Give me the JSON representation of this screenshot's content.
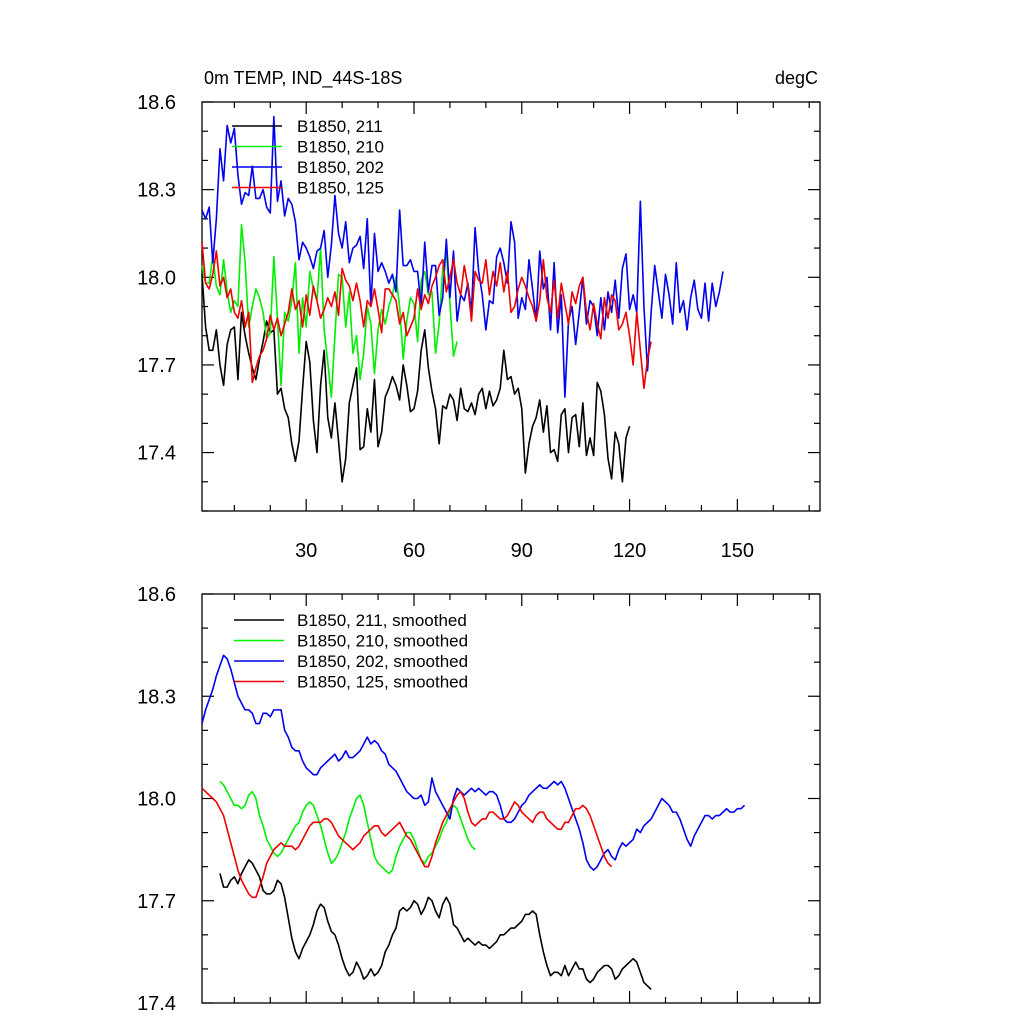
{
  "chart_data": [
    {
      "type": "line",
      "title": "0m TEMP, IND_44S-18S",
      "units": "degC",
      "ylim": [
        17.2,
        18.6
      ],
      "yticks": [
        "18.6",
        "18.3",
        "18.0",
        "17.7",
        "17.4"
      ],
      "xlim": [
        1,
        173
      ],
      "xticks": [
        "30",
        "60",
        "90",
        "120",
        "150"
      ],
      "legend_placement": "top-left",
      "series": [
        {
          "name": "B1850, 211",
          "color": "#000000",
          "x0": 1,
          "values": [
            18.01,
            17.83,
            17.75,
            17.75,
            17.82,
            17.7,
            17.63,
            17.77,
            17.82,
            17.83,
            17.65,
            17.88,
            17.8,
            17.74,
            17.69,
            17.65,
            17.72,
            17.78,
            17.85,
            17.81,
            17.82,
            17.6,
            17.62,
            17.55,
            17.52,
            17.43,
            17.37,
            17.44,
            17.62,
            17.78,
            17.71,
            17.51,
            17.4,
            17.63,
            17.75,
            17.52,
            17.45,
            17.57,
            17.44,
            17.3,
            17.38,
            17.57,
            17.63,
            17.69,
            17.41,
            17.42,
            17.55,
            17.47,
            17.65,
            17.42,
            17.47,
            17.59,
            17.62,
            17.66,
            17.63,
            17.58,
            17.7,
            17.63,
            17.54,
            17.55,
            17.61,
            17.75,
            17.82,
            17.69,
            17.61,
            17.55,
            17.43,
            17.56,
            17.55,
            17.6,
            17.58,
            17.51,
            17.62,
            17.55,
            17.54,
            17.57,
            17.53,
            17.6,
            17.62,
            17.55,
            17.61,
            17.56,
            17.58,
            17.62,
            17.75,
            17.65,
            17.66,
            17.6,
            17.62,
            17.55,
            17.33,
            17.43,
            17.49,
            17.52,
            17.58,
            17.47,
            17.56,
            17.4,
            17.41,
            17.37,
            17.53,
            17.55,
            17.4,
            17.52,
            17.53,
            17.42,
            17.57,
            17.39,
            17.45,
            17.39,
            17.64,
            17.61,
            17.53,
            17.38,
            17.31,
            17.47,
            17.43,
            17.3,
            17.45,
            17.49
          ]
        },
        {
          "name": "B1850, 210",
          "color": "#00ee00",
          "x0": 1,
          "values": [
            18.04,
            17.98,
            17.98,
            18.07,
            17.97,
            17.94,
            18.06,
            17.95,
            17.88,
            17.92,
            17.9,
            18.18,
            18.05,
            17.83,
            17.9,
            17.96,
            17.93,
            17.88,
            17.79,
            17.81,
            18.07,
            17.86,
            17.63,
            17.88,
            17.85,
            17.92,
            18.05,
            17.74,
            17.93,
            17.83,
            18.02,
            17.96,
            17.92,
            18.1,
            17.82,
            17.71,
            17.59,
            17.8,
            18.01,
            18.0,
            17.83,
            17.95,
            17.74,
            17.8,
            17.65,
            17.74,
            17.9,
            17.84,
            17.67,
            17.82,
            17.89,
            17.84,
            17.9,
            17.94,
            18.0,
            17.9,
            17.72,
            17.85,
            17.93,
            17.91,
            17.78,
            17.99,
            18.02,
            17.94,
            17.95,
            17.74,
            17.84,
            18.03,
            18.09,
            17.91,
            17.73,
            17.78
          ]
        },
        {
          "name": "B1850, 202",
          "color": "#0000ee",
          "x0": 1,
          "values": [
            18.23,
            18.2,
            18.24,
            18.05,
            18.2,
            18.44,
            18.33,
            18.52,
            18.46,
            18.51,
            18.35,
            18.25,
            18.29,
            18.28,
            18.38,
            18.27,
            18.27,
            18.3,
            18.24,
            18.22,
            18.55,
            18.26,
            18.33,
            18.21,
            18.27,
            18.25,
            18.19,
            18.06,
            18.12,
            18.1,
            18.07,
            18.03,
            18.09,
            18.1,
            18.16,
            18.0,
            18.11,
            18.28,
            18.15,
            18.1,
            18.19,
            18.05,
            18.1,
            18.11,
            18.14,
            18.03,
            18.2,
            17.9,
            18.15,
            18.02,
            18.05,
            18.02,
            17.98,
            18.01,
            17.95,
            18.23,
            18.04,
            18.04,
            18.06,
            18.02,
            18.02,
            17.9,
            18.12,
            17.95,
            18.04,
            18.04,
            17.87,
            17.93,
            18.13,
            17.93,
            18.09,
            17.85,
            17.94,
            17.92,
            17.98,
            17.88,
            18.17,
            18.02,
            17.94,
            17.82,
            17.92,
            17.91,
            18.07,
            18.1,
            18.05,
            17.98,
            18.19,
            18.12,
            17.86,
            17.93,
            17.89,
            18.06,
            17.96,
            17.85,
            18.09,
            17.96,
            18.0,
            17.82,
            18.05,
            17.81,
            17.94,
            17.59,
            17.85,
            17.9,
            17.77,
            17.88,
            18.0,
            17.84,
            17.92,
            17.9,
            17.8,
            17.93,
            17.82,
            17.95,
            17.88,
            17.99,
            17.86,
            18.03,
            18.08,
            17.89,
            17.94,
            17.88,
            18.26,
            17.9,
            17.68,
            17.88,
            18.04,
            17.95,
            17.86,
            18.01,
            17.94,
            17.84,
            18.05,
            17.88,
            17.92,
            17.82,
            17.93,
            17.99,
            17.89,
            17.86,
            17.98,
            17.85,
            17.98,
            17.9,
            17.95,
            18.02
          ]
        },
        {
          "name": "B1850, 125",
          "color": "#ee0000",
          "x0": 1,
          "values": [
            18.12,
            17.98,
            17.96,
            18.01,
            18.09,
            17.97,
            18.0,
            17.93,
            17.96,
            17.88,
            17.86,
            17.92,
            17.83,
            17.88,
            17.64,
            17.69,
            17.73,
            17.75,
            17.79,
            17.87,
            17.82,
            17.86,
            17.8,
            17.84,
            17.88,
            17.96,
            17.89,
            17.92,
            17.83,
            17.94,
            17.87,
            17.97,
            17.92,
            17.86,
            17.89,
            17.93,
            17.9,
            17.95,
            17.87,
            18.03,
            17.99,
            17.97,
            17.92,
            17.98,
            17.92,
            17.83,
            17.92,
            17.9,
            17.96,
            17.89,
            17.81,
            17.96,
            17.96,
            17.94,
            17.92,
            17.84,
            17.88,
            17.8,
            17.83,
            17.86,
            17.96,
            17.89,
            17.94,
            17.91,
            17.97,
            18.0,
            18.04,
            18.06,
            17.95,
            18.0,
            18.06,
            17.98,
            17.94,
            18.04,
            17.97,
            17.85,
            18.02,
            17.99,
            17.98,
            18.06,
            17.94,
            18.02,
            17.97,
            18.05,
            17.95,
            18.02,
            17.88,
            17.9,
            17.96,
            18.0,
            17.97,
            17.93,
            17.9,
            17.85,
            17.92,
            18.06,
            17.93,
            17.88,
            17.99,
            17.86,
            17.98,
            17.91,
            17.84,
            17.95,
            17.91,
            17.97,
            18.0,
            17.88,
            17.82,
            17.91,
            17.84,
            17.79,
            17.93,
            17.86,
            17.94,
            17.92,
            17.82,
            17.84,
            17.88,
            17.8,
            17.7,
            17.88,
            17.75,
            17.62,
            17.72,
            17.78
          ]
        }
      ]
    },
    {
      "type": "line",
      "ylim": [
        17.4,
        18.6
      ],
      "yticks": [
        "18.6",
        "18.3",
        "18.0",
        "17.7",
        "17.4"
      ],
      "xlim": [
        1,
        173
      ],
      "legend_placement": "top-left",
      "series": [
        {
          "name": "B1850, 211, smoothed",
          "color": "#000000",
          "x0": 6,
          "values": [
            17.78,
            17.74,
            17.74,
            17.76,
            17.77,
            17.75,
            17.78,
            17.8,
            17.82,
            17.81,
            17.79,
            17.77,
            17.73,
            17.72,
            17.72,
            17.73,
            17.76,
            17.75,
            17.71,
            17.65,
            17.59,
            17.55,
            17.53,
            17.56,
            17.58,
            17.6,
            17.63,
            17.67,
            17.69,
            17.68,
            17.64,
            17.61,
            17.6,
            17.57,
            17.53,
            17.5,
            17.48,
            17.49,
            17.52,
            17.5,
            17.47,
            17.48,
            17.5,
            17.48,
            17.49,
            17.51,
            17.55,
            17.57,
            17.6,
            17.62,
            17.67,
            17.68,
            17.67,
            17.68,
            17.7,
            17.69,
            17.66,
            17.68,
            17.71,
            17.7,
            17.67,
            17.65,
            17.69,
            17.71,
            17.69,
            17.63,
            17.62,
            17.6,
            17.58,
            17.59,
            17.58,
            17.57,
            17.58,
            17.57,
            17.57,
            17.56,
            17.57,
            17.58,
            17.6,
            17.6,
            17.61,
            17.62,
            17.62,
            17.63,
            17.64,
            17.66,
            17.66,
            17.67,
            17.66,
            17.6,
            17.55,
            17.51,
            17.48,
            17.49,
            17.49,
            17.48,
            17.51,
            17.48,
            17.5,
            17.52,
            17.5,
            17.5,
            17.47,
            17.46,
            17.47,
            17.49,
            17.5,
            17.51,
            17.51,
            17.5,
            17.47,
            17.48,
            17.5,
            17.51,
            17.52,
            17.53,
            17.52,
            17.49,
            17.46,
            17.45,
            17.44
          ]
        },
        {
          "name": "B1850, 210, smoothed",
          "color": "#00ee00",
          "x0": 6,
          "values": [
            18.05,
            18.04,
            18.02,
            18.0,
            17.98,
            17.98,
            17.97,
            17.98,
            18.01,
            18.02,
            18.0,
            17.95,
            17.92,
            17.88,
            17.86,
            17.84,
            17.83,
            17.84,
            17.86,
            17.88,
            17.9,
            17.92,
            17.93,
            17.96,
            17.98,
            17.99,
            17.98,
            17.95,
            17.92,
            17.88,
            17.84,
            17.81,
            17.82,
            17.84,
            17.87,
            17.9,
            17.94,
            17.97,
            18.0,
            18.01,
            17.98,
            17.93,
            17.88,
            17.83,
            17.81,
            17.8,
            17.79,
            17.78,
            17.79,
            17.83,
            17.86,
            17.88,
            17.9,
            17.9,
            17.88,
            17.85,
            17.82,
            17.81,
            17.83,
            17.84,
            17.86,
            17.88,
            17.91,
            17.93,
            17.96,
            17.98,
            17.97,
            17.94,
            17.91,
            17.88,
            17.86,
            17.85
          ]
        },
        {
          "name": "B1850, 202, smoothed",
          "color": "#0000ee",
          "x0": 1,
          "values": [
            18.22,
            18.26,
            18.29,
            18.32,
            18.36,
            18.39,
            18.42,
            18.41,
            18.38,
            18.34,
            18.3,
            18.28,
            18.26,
            18.26,
            18.25,
            18.22,
            18.22,
            18.25,
            18.25,
            18.24,
            18.26,
            18.26,
            18.26,
            18.2,
            18.18,
            18.15,
            18.14,
            18.14,
            18.11,
            18.09,
            18.08,
            18.07,
            18.07,
            18.09,
            18.1,
            18.11,
            18.12,
            18.13,
            18.11,
            18.12,
            18.14,
            18.12,
            18.12,
            18.13,
            18.14,
            18.16,
            18.18,
            18.16,
            18.17,
            18.16,
            18.14,
            18.13,
            18.1,
            18.09,
            18.08,
            18.06,
            18.04,
            18.02,
            18.01,
            18.0,
            18.0,
            18.01,
            17.98,
            17.99,
            18.06,
            18.02,
            18.0,
            17.98,
            17.96,
            17.94,
            18.0,
            18.03,
            18.02,
            18.01,
            18.02,
            18.03,
            18.02,
            18.03,
            18.02,
            18.01,
            18.02,
            18.02,
            18.01,
            17.98,
            17.94,
            17.93,
            17.93,
            17.94,
            17.96,
            17.98,
            17.99,
            18.01,
            18.02,
            18.03,
            18.04,
            18.03,
            18.03,
            18.04,
            18.05,
            18.04,
            18.05,
            18.03,
            18.0,
            17.97,
            17.94,
            17.91,
            17.87,
            17.82,
            17.8,
            17.79,
            17.8,
            17.82,
            17.84,
            17.85,
            17.83,
            17.82,
            17.85,
            17.87,
            17.86,
            17.87,
            17.88,
            17.91,
            17.9,
            17.92,
            17.93,
            17.94,
            17.96,
            17.98,
            18.0,
            17.99,
            17.98,
            17.96,
            17.96,
            17.94,
            17.91,
            17.88,
            17.86,
            17.89,
            17.91,
            17.93,
            17.95,
            17.95,
            17.94,
            17.95,
            17.95,
            17.96,
            17.97,
            17.96,
            17.96,
            17.97,
            17.97,
            17.98
          ]
        },
        {
          "name": "B1850, 125, smoothed",
          "color": "#ee0000",
          "x0": 1,
          "values": [
            18.03,
            18.02,
            18.01,
            18.0,
            17.99,
            17.97,
            17.95,
            17.91,
            17.87,
            17.83,
            17.79,
            17.76,
            17.74,
            17.72,
            17.71,
            17.71,
            17.74,
            17.77,
            17.81,
            17.83,
            17.85,
            17.86,
            17.87,
            17.86,
            17.86,
            17.86,
            17.85,
            17.86,
            17.88,
            17.9,
            17.92,
            17.93,
            17.93,
            17.93,
            17.94,
            17.94,
            17.93,
            17.91,
            17.89,
            17.88,
            17.87,
            17.86,
            17.85,
            17.86,
            17.87,
            17.89,
            17.9,
            17.91,
            17.92,
            17.92,
            17.9,
            17.89,
            17.9,
            17.91,
            17.92,
            17.93,
            17.91,
            17.89,
            17.88,
            17.86,
            17.84,
            17.82,
            17.8,
            17.8,
            17.83,
            17.87,
            17.9,
            17.93,
            17.95,
            17.97,
            17.99,
            18.01,
            18.02,
            18.0,
            17.96,
            17.93,
            17.92,
            17.93,
            17.94,
            17.94,
            17.96,
            17.96,
            17.95,
            17.94,
            17.94,
            17.95,
            17.97,
            17.99,
            17.98,
            17.96,
            17.95,
            17.94,
            17.93,
            17.95,
            17.96,
            17.96,
            17.94,
            17.93,
            17.92,
            17.91,
            17.91,
            17.93,
            17.93,
            17.95,
            17.97,
            17.97,
            17.98,
            17.97,
            17.95,
            17.92,
            17.89,
            17.86,
            17.83,
            17.81,
            17.8
          ]
        }
      ]
    }
  ]
}
